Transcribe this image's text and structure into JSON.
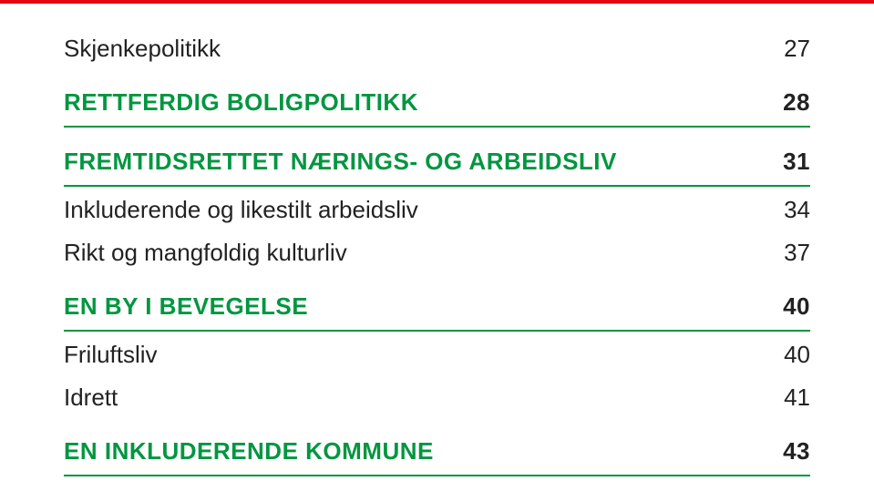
{
  "colors": {
    "green": "#009640",
    "red": "#e30613",
    "text": "#222222",
    "background": "#ffffff"
  },
  "typography": {
    "font_family": "Arial, Helvetica, sans-serif",
    "regular_size": 26,
    "heading_size": 26,
    "heading_weight": 700
  },
  "rows": {
    "r1": {
      "label": "Skjenkepolitikk",
      "page": "27"
    },
    "r2": {
      "label": "RETTFERDIG BOLIGPOLITIKK",
      "page": "28"
    },
    "r3": {
      "label": "FREMTIDSRETTET NÆRINGS- OG ARBEIDSLIV",
      "page": "31"
    },
    "r4": {
      "label": "Inkluderende og likestilt arbeidsliv",
      "page": "34"
    },
    "r5": {
      "label": "Rikt og mangfoldig kulturliv",
      "page": "37"
    },
    "r6": {
      "label": "EN BY I BEVEGELSE",
      "page": "40"
    },
    "r7": {
      "label": "Friluftsliv",
      "page": "40"
    },
    "r8": {
      "label": "Idrett",
      "page": "41"
    },
    "r9": {
      "label": "EN INKLUDERENDE KOMMUNE",
      "page": "43"
    }
  }
}
